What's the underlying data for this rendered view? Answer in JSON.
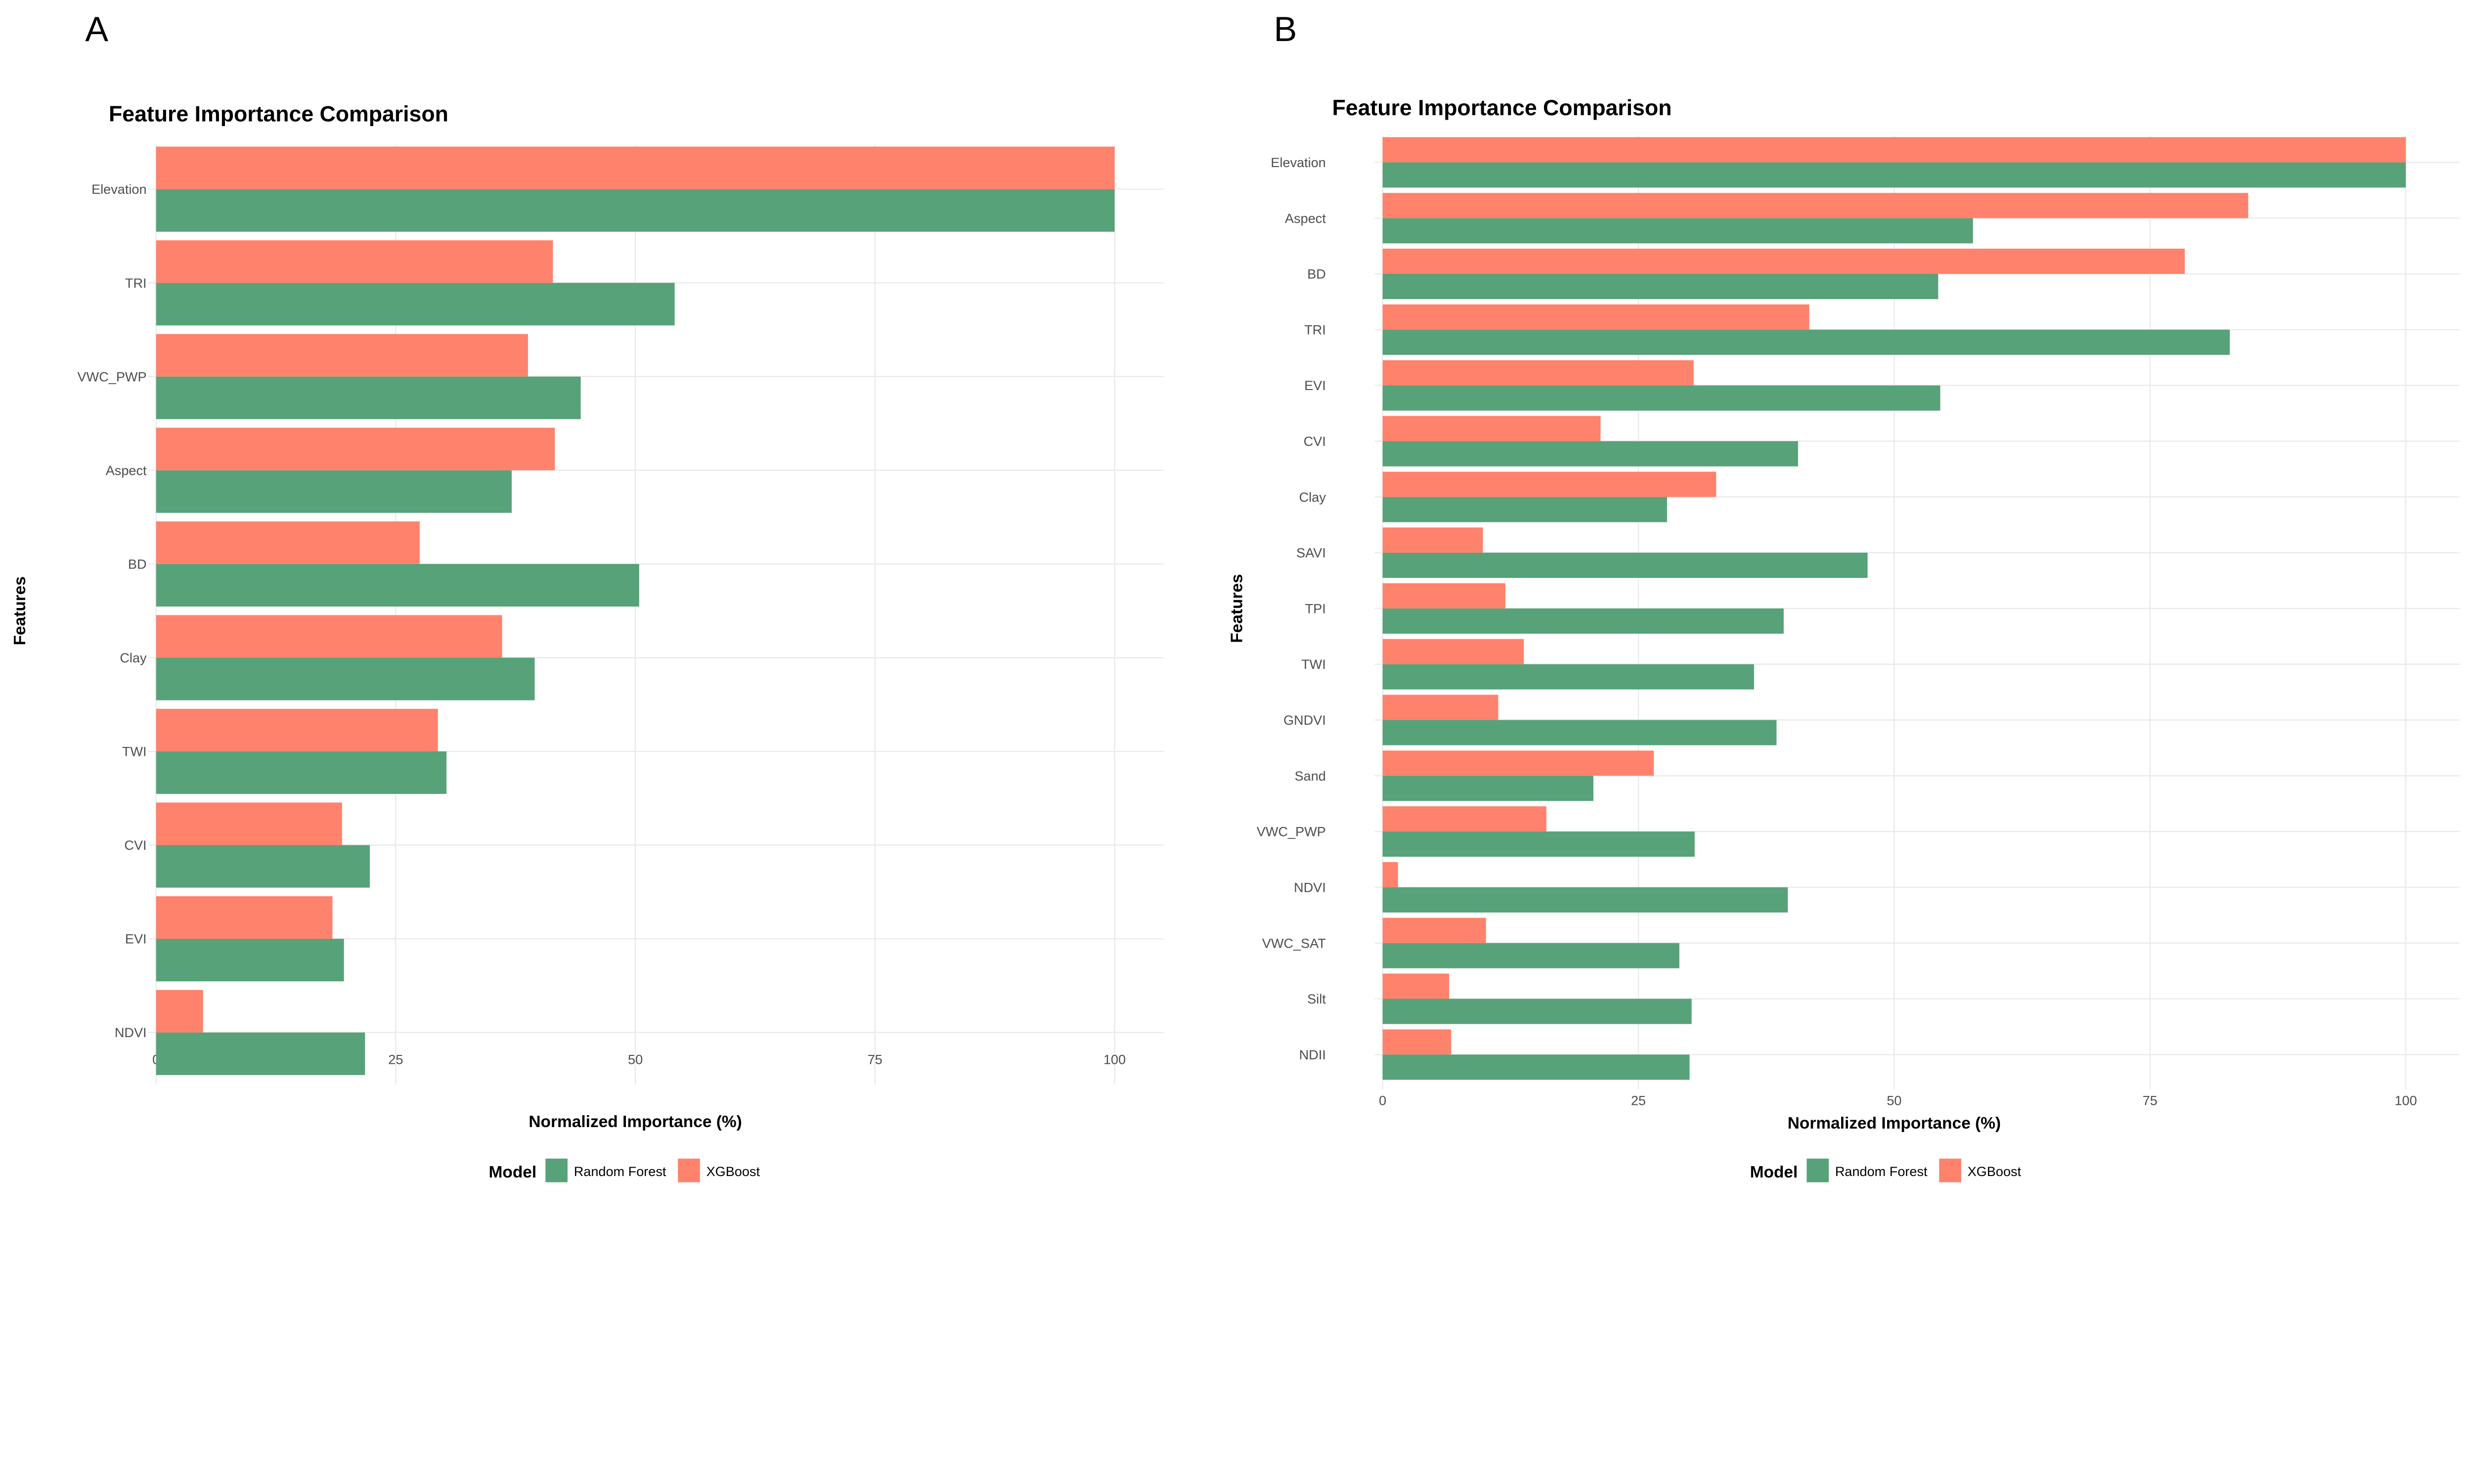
{
  "colors": {
    "rf": "#57A278",
    "xgb": "#FF826C",
    "grid": "#ebebeb"
  },
  "chart_data": [
    {
      "type": "bar",
      "orientation": "horizontal",
      "panel": "A",
      "title": "Feature Importance Comparison",
      "xlabel": "Normalized Importance (%)",
      "ylabel": "Features",
      "xlim": [
        0,
        100
      ],
      "xticks": [
        "0",
        "25",
        "50",
        "75",
        "100"
      ],
      "grid": true,
      "legend": {
        "title": "Model",
        "position": "bottom",
        "entries": [
          "Random Forest",
          "XGBoost"
        ]
      },
      "categories": [
        "Elevation",
        "TRI",
        "VWC_PWP",
        "Aspect",
        "BD",
        "Clay",
        "TWI",
        "CVI",
        "EVI",
        "NDVI"
      ],
      "series": [
        {
          "name": "Random Forest",
          "values": [
            100,
            54.1,
            44.3,
            37.1,
            50.4,
            39.5,
            30.3,
            22.3,
            19.6,
            21.8
          ]
        },
        {
          "name": "XGBoost",
          "values": [
            100,
            41.4,
            38.8,
            41.6,
            27.5,
            36.1,
            29.4,
            19.4,
            18.4,
            4.9
          ]
        }
      ]
    },
    {
      "type": "bar",
      "orientation": "horizontal",
      "panel": "B",
      "title": "Feature Importance Comparison",
      "xlabel": "Normalized Importance (%)",
      "ylabel": "Features",
      "xlim": [
        0,
        100
      ],
      "xticks": [
        "0",
        "25",
        "50",
        "75",
        "100"
      ],
      "grid": true,
      "legend": {
        "title": "Model",
        "position": "bottom",
        "entries": [
          "Random Forest",
          "XGBoost"
        ]
      },
      "categories": [
        "Elevation",
        "Aspect",
        "BD",
        "TRI",
        "EVI",
        "CVI",
        "Clay",
        "SAVI",
        "TPI",
        "TWI",
        "GNDVI",
        "Sand",
        "VWC_PWP",
        "NDVI",
        "VWC_SAT",
        "Silt",
        "NDII"
      ],
      "series": [
        {
          "name": "Random Forest",
          "values": [
            100,
            57.7,
            54.3,
            82.8,
            54.5,
            40.6,
            27.8,
            47.4,
            39.2,
            36.3,
            38.5,
            20.6,
            30.5,
            39.6,
            29.0,
            30.2,
            30.0
          ]
        },
        {
          "name": "XGBoost",
          "values": [
            100,
            84.6,
            78.4,
            41.7,
            30.4,
            21.3,
            32.6,
            9.8,
            12.0,
            13.8,
            11.3,
            26.5,
            16.0,
            1.5,
            10.1,
            6.5,
            6.7
          ]
        }
      ]
    }
  ]
}
